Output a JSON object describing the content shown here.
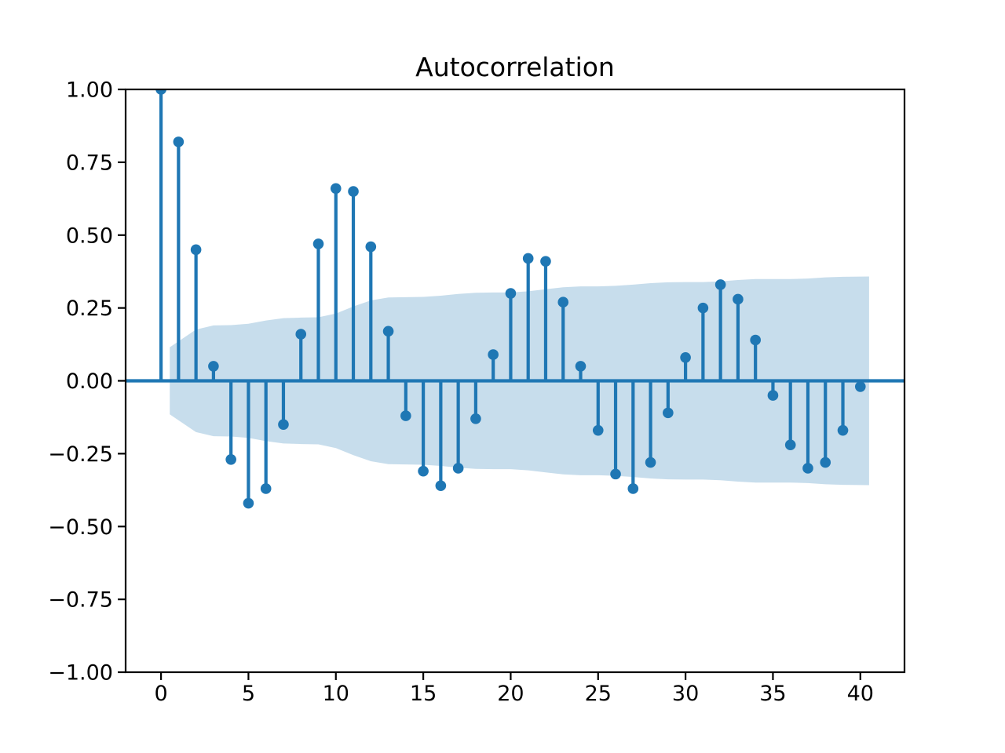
{
  "figure": {
    "title": "Autocorrelation",
    "background_color": "#ffffff",
    "accent_color": "#1f77b4",
    "band_color": "#1f77b4",
    "band_opacity": 0.25,
    "spine_color": "#000000",
    "text_color": "#000000"
  },
  "chart_data": {
    "type": "stem",
    "subtype": "autocorrelation",
    "title": "Autocorrelation",
    "xlabel": "",
    "ylabel": "",
    "grid": false,
    "legend": null,
    "xlim": [
      -2.025,
      42.525
    ],
    "ylim": [
      -1.0,
      1.0
    ],
    "xticks": {
      "values": [
        0,
        5,
        10,
        15,
        20,
        25,
        30,
        35,
        40
      ],
      "labels": [
        "0",
        "5",
        "10",
        "15",
        "20",
        "25",
        "30",
        "35",
        "40"
      ]
    },
    "yticks": {
      "values": [
        1.0,
        0.75,
        0.5,
        0.25,
        0.0,
        -0.25,
        -0.5,
        -0.75,
        -1.0
      ],
      "labels": [
        "1.00",
        "0.75",
        "0.50",
        "0.25",
        "0.00",
        "−0.25",
        "−0.50",
        "−0.75",
        "−1.00"
      ]
    },
    "lags": [
      0,
      1,
      2,
      3,
      4,
      5,
      6,
      7,
      8,
      9,
      10,
      11,
      12,
      13,
      14,
      15,
      16,
      17,
      18,
      19,
      20,
      21,
      22,
      23,
      24,
      25,
      26,
      27,
      28,
      29,
      30,
      31,
      32,
      33,
      34,
      35,
      36,
      37,
      38,
      39,
      40
    ],
    "values": [
      1.0,
      0.82,
      0.45,
      0.05,
      -0.27,
      -0.42,
      -0.37,
      -0.15,
      0.16,
      0.47,
      0.66,
      0.65,
      0.46,
      0.17,
      -0.12,
      -0.31,
      -0.36,
      -0.3,
      -0.13,
      0.09,
      0.3,
      0.42,
      0.41,
      0.27,
      0.05,
      -0.17,
      -0.32,
      -0.37,
      -0.28,
      -0.11,
      0.08,
      0.25,
      0.33,
      0.28,
      0.14,
      -0.05,
      -0.22,
      -0.3,
      -0.28,
      -0.17,
      -0.02
    ],
    "confidence_band": {
      "description": "symmetric band around zero, plotted from lag 0.5 to lag 40.5",
      "lags": [
        1,
        2,
        3,
        4,
        5,
        6,
        7,
        8,
        9,
        10,
        11,
        12,
        13,
        14,
        15,
        16,
        17,
        18,
        19,
        20,
        21,
        22,
        23,
        24,
        25,
        26,
        27,
        28,
        29,
        30,
        31,
        32,
        33,
        34,
        35,
        36,
        37,
        38,
        39,
        40
      ],
      "upper": [
        0.115,
        0.176,
        0.19,
        0.191,
        0.196,
        0.207,
        0.215,
        0.217,
        0.218,
        0.231,
        0.255,
        0.276,
        0.286,
        0.287,
        0.288,
        0.292,
        0.298,
        0.302,
        0.303,
        0.303,
        0.307,
        0.314,
        0.321,
        0.324,
        0.324,
        0.326,
        0.33,
        0.335,
        0.338,
        0.339,
        0.339,
        0.341,
        0.346,
        0.349,
        0.349,
        0.349,
        0.351,
        0.355,
        0.357,
        0.358
      ],
      "x_start": 0.5,
      "x_end": 40.5
    }
  }
}
